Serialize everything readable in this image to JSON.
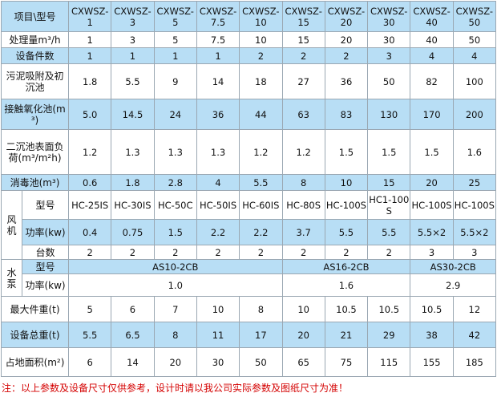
{
  "table": {
    "corner": "项目\\型号",
    "models": [
      "CXWSZ-1",
      "CXWSZ-3",
      "CXWSZ-5",
      "CXWSZ-7.5",
      "CXWSZ-10",
      "CXWSZ-15",
      "CXWSZ-20",
      "CXWSZ-30",
      "CXWSZ-40",
      "CXWSZ-50"
    ],
    "rows": [
      {
        "label": "处理量m³/h",
        "cells": [
          "1",
          "3",
          "5",
          "7.5",
          "10",
          "15",
          "20",
          "30",
          "40",
          "50"
        ]
      },
      {
        "label": "设备件数",
        "cells": [
          "1",
          "1",
          "1",
          "1",
          "2",
          "2",
          "2",
          "3",
          "4",
          "4"
        ]
      },
      {
        "label": "污泥吸附及初沉池",
        "cells": [
          "1.8",
          "5.5",
          "9",
          "14",
          "18",
          "27",
          "36",
          "50",
          "82",
          "100"
        ]
      },
      {
        "label": "接触氧化池(m³)",
        "cells": [
          "5.0",
          "14.5",
          "24",
          "36",
          "44",
          "63",
          "83",
          "130",
          "170",
          "200"
        ]
      },
      {
        "label": "二沉池表面负荷(m³/m²h)",
        "cells": [
          "1.2",
          "1.3",
          "1.3",
          "1.3",
          "1.2",
          "1.2",
          "1.5",
          "1.5",
          "1.5",
          "1.6"
        ]
      },
      {
        "label": "消毒池(m³)",
        "cells": [
          "0.6",
          "1.8",
          "2.8",
          "4",
          "5.5",
          "8",
          "10",
          "15",
          "20",
          "25"
        ]
      }
    ],
    "fan": {
      "label": "风机",
      "rows": [
        {
          "label": "型号",
          "cells": [
            "HC-25IS",
            "HC-30IS",
            "HC-50C",
            "HC-50IS",
            "HC-60IS",
            "HC-80S",
            "HC-100S",
            "HC1-100S",
            "HC-100S",
            "HC-100S"
          ]
        },
        {
          "label": "功率(kw)",
          "cells": [
            "0.4",
            "0.75",
            "1.5",
            "2.2",
            "2.2",
            "3.7",
            "5.5",
            "5.5",
            "5.5×2",
            "5.5×2"
          ]
        },
        {
          "label": "台数",
          "cells": [
            "2",
            "2",
            "2",
            "2",
            "2",
            "2",
            "2",
            "2",
            "3",
            "3"
          ]
        }
      ]
    },
    "pump": {
      "label": "水泵",
      "rows": [
        {
          "label": "型号",
          "cells": [
            "AS10-2CB",
            "AS16-2CB",
            "AS30-2CB"
          ]
        },
        {
          "label": "功率(kw)",
          "cells": [
            "1.0",
            "1.6",
            "2.9"
          ]
        }
      ]
    },
    "rows_tail": [
      {
        "label": "最大件重(t)",
        "cells": [
          "5",
          "6",
          "7",
          "10",
          "8",
          "10",
          "10.5",
          "10.5",
          "10.5",
          "12"
        ]
      },
      {
        "label": "设备总重(t)",
        "cells": [
          "5.5",
          "6.5",
          "8",
          "11",
          "17",
          "20",
          "21",
          "29",
          "38",
          "42"
        ]
      },
      {
        "label": "占地面积(m²)",
        "cells": [
          "6",
          "14",
          "20",
          "30",
          "50",
          "65",
          "75",
          "115",
          "155",
          "185"
        ]
      }
    ]
  },
  "note": "注：以上参数及设备尺寸仅供参考，设计时请以我公司实际参数及图纸尺寸为准！"
}
